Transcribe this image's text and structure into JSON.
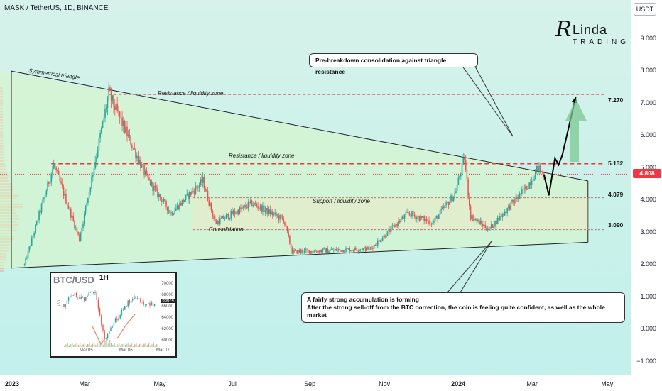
{
  "header": {
    "title": "MASK / TetherUS, 1D, BINANCE",
    "currency_button": "USDT"
  },
  "logo": {
    "initial": "R",
    "name": "Linda",
    "sub": "TRADING"
  },
  "callouts": {
    "top": "Pre-breakdown consolidation against triangle resistance",
    "bottom_line1": "A fairly strong accumulation is forming",
    "bottom_line2": "After the strong sell-off from the BTC correction, the coin is feeling quite confident, as well as the whole market"
  },
  "annotations": {
    "triangle": "Symmetrical triangle",
    "resistance_top": "Resistance / liquidity zone",
    "resistance_mid": "Resistance / liquidity zone",
    "support": "Support / liquidity zone",
    "consolidation": "Consolidation"
  },
  "levels": [
    {
      "label": "7.270",
      "value": 7.27
    },
    {
      "label": "5.132",
      "value": 5.132
    },
    {
      "label": "4.079",
      "value": 4.079
    },
    {
      "label": "3.090",
      "value": 3.09
    }
  ],
  "current_price": {
    "label": "4.808",
    "value": 4.808,
    "color": "#f23645"
  },
  "colors": {
    "bull": "#26a69a",
    "bear": "#ef5350",
    "resistance": "#e53935",
    "triangle_fill": "#d9f5c4",
    "forecast_arrow": "#7bc893"
  },
  "chart_data": {
    "type": "candlestick",
    "symbol": "MASK / TetherUS",
    "timeframe": "1D",
    "exchange": "BINANCE",
    "y_axis": {
      "ticks": [
        -1.0,
        0.0,
        1.0,
        2.0,
        3.0,
        4.0,
        5.0,
        6.0,
        7.0,
        8.0,
        9.0
      ],
      "tick_labels": [
        "−1.000",
        "0.000",
        "1.000",
        "2.000",
        "3.000",
        "4.000",
        "5.000",
        "6.000",
        "7.000",
        "8.000",
        "9.000"
      ],
      "range": [
        -1.4,
        10.2
      ]
    },
    "x_axis": {
      "labels": [
        "2023",
        "Mar",
        "May",
        "Jul",
        "Sep",
        "Nov",
        "2024",
        "Mar",
        "May"
      ],
      "range": [
        "2022-12-21",
        "2024-05-20"
      ]
    },
    "key_points": [
      {
        "x": "2023-01-10",
        "y": 2.0
      },
      {
        "x": "2023-02-03",
        "y": 5.1
      },
      {
        "x": "2023-02-24",
        "y": 2.8
      },
      {
        "x": "2023-03-20",
        "y": 7.3
      },
      {
        "x": "2023-04-20",
        "y": 4.7
      },
      {
        "x": "2023-05-10",
        "y": 3.6
      },
      {
        "x": "2023-06-05",
        "y": 4.6
      },
      {
        "x": "2023-06-15",
        "y": 3.3
      },
      {
        "x": "2023-07-15",
        "y": 3.9
      },
      {
        "x": "2023-08-10",
        "y": 3.4
      },
      {
        "x": "2023-08-17",
        "y": 2.4
      },
      {
        "x": "2023-10-20",
        "y": 2.5
      },
      {
        "x": "2023-11-20",
        "y": 3.6
      },
      {
        "x": "2023-12-10",
        "y": 3.3
      },
      {
        "x": "2023-12-28",
        "y": 4.2
      },
      {
        "x": "2024-01-05",
        "y": 5.3
      },
      {
        "x": "2024-01-10",
        "y": 3.5
      },
      {
        "x": "2024-01-25",
        "y": 3.1
      },
      {
        "x": "2024-02-25",
        "y": 4.4
      },
      {
        "x": "2024-03-05",
        "y": 5.0
      },
      {
        "x": "2024-03-10",
        "y": 4.8
      }
    ],
    "triangle": {
      "upper": [
        {
          "x": "2022-12-21",
          "y": 8.0
        },
        {
          "x": "2024-04-15",
          "y": 4.6
        }
      ],
      "lower": [
        {
          "x": "2022-12-21",
          "y": 1.9
        },
        {
          "x": "2024-04-15",
          "y": 2.7
        }
      ]
    },
    "projection": [
      {
        "x": "2024-03-10",
        "y": 4.8
      },
      {
        "x": "2024-03-14",
        "y": 4.15
      },
      {
        "x": "2024-03-19",
        "y": 5.3
      },
      {
        "x": "2024-03-22",
        "y": 5.1
      },
      {
        "x": "2024-03-25",
        "y": 5.4
      },
      {
        "x": "2024-04-05",
        "y": 7.2
      }
    ]
  },
  "inset": {
    "title": "BTC/USD",
    "timeframe": "1H",
    "price_label": "66674",
    "side_label": "USD",
    "y_ticks": [
      "70000",
      "68000",
      "66000",
      "64000",
      "62000",
      "60000"
    ],
    "x_labels": [
      "Mar 05",
      "Mar 06",
      "Mar 07"
    ],
    "chart_data": {
      "type": "candlestick",
      "series_name": "BTC/USD",
      "key_points": [
        {
          "x": "Mar 04",
          "y": 66500
        },
        {
          "x": "Mar 05 00:00",
          "y": 68200
        },
        {
          "x": "Mar 05 06:00",
          "y": 67500
        },
        {
          "x": "Mar 05 12:00",
          "y": 69000
        },
        {
          "x": "Mar 05 16:00",
          "y": 60000
        },
        {
          "x": "Mar 05 20:00",
          "y": 63500
        },
        {
          "x": "Mar 06 04:00",
          "y": 66500
        },
        {
          "x": "Mar 06 12:00",
          "y": 67800
        },
        {
          "x": "Mar 06 18:00",
          "y": 66200
        },
        {
          "x": "Mar 07 00:00",
          "y": 66674
        }
      ]
    }
  }
}
